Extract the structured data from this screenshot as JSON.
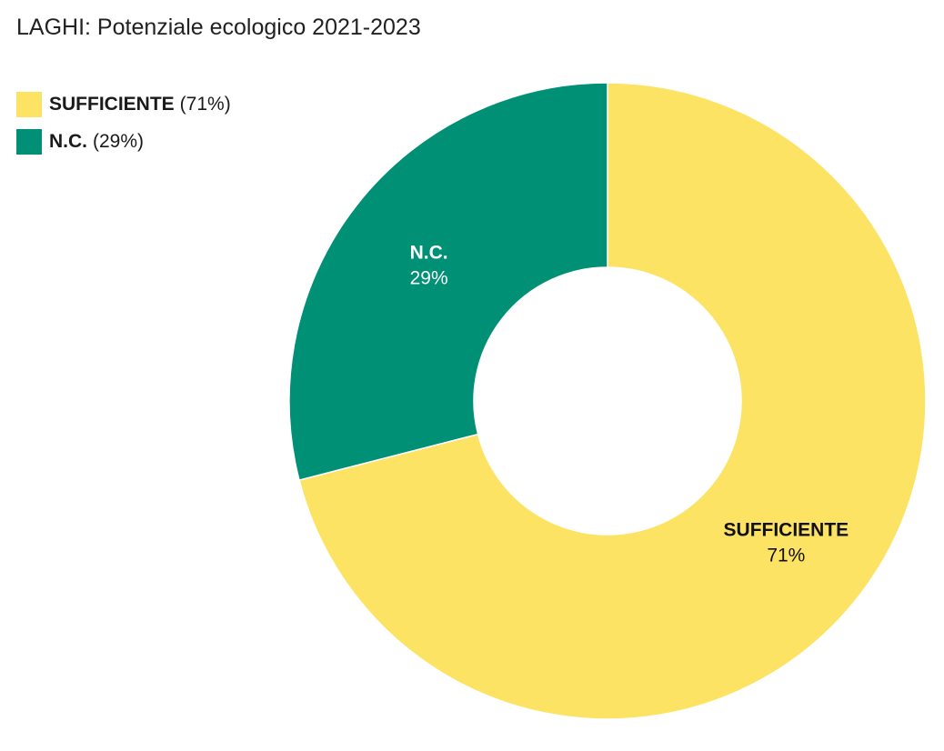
{
  "chart_data": {
    "type": "pie",
    "variant": "donut",
    "title": "LAGHI: Potenziale ecologico 2021-2023",
    "slices": [
      {
        "label": "SUFFICIENTE",
        "value": 71,
        "percent_label": "71%",
        "legend_pct": "(71%)",
        "color": "#fde364",
        "text_color": "#111111"
      },
      {
        "label": "N.C.",
        "value": 29,
        "percent_label": "29%",
        "legend_pct": "(29%)",
        "color": "#009075",
        "text_color": "#ffffff"
      }
    ],
    "legend_position": "top-left"
  }
}
